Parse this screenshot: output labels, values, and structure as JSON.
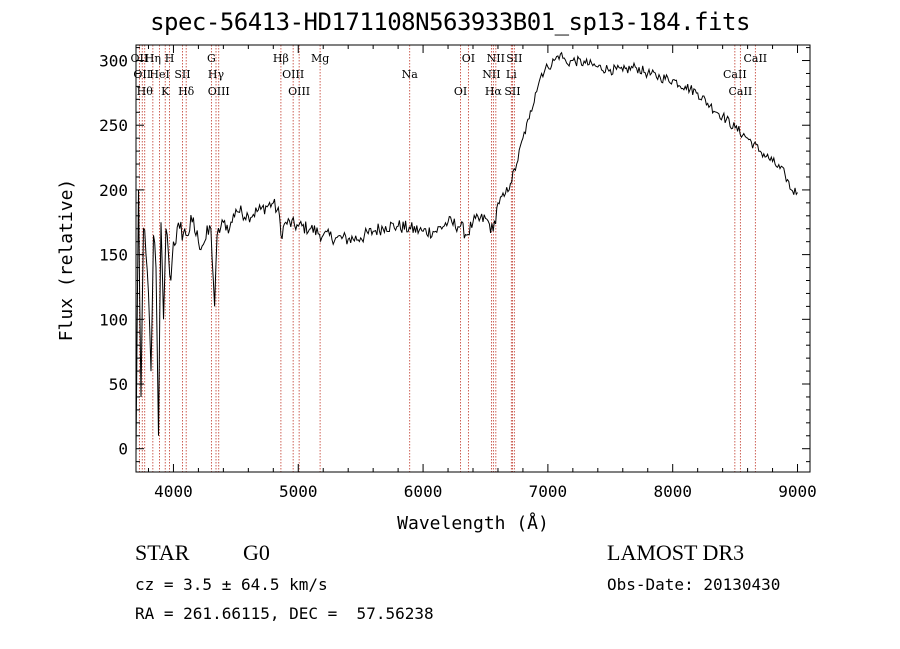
{
  "chart_data": {
    "type": "line",
    "title": "spec-56413-HD171108N563933B01_sp13-184.fits",
    "xlabel": "Wavelength (Å)",
    "ylabel": "Flux (relative)",
    "xlim": [
      3700,
      9100
    ],
    "ylim": [
      -18,
      312
    ],
    "xticks": [
      4000,
      5000,
      6000,
      7000,
      8000,
      9000
    ],
    "yticks": [
      0,
      50,
      100,
      150,
      200,
      250,
      300
    ],
    "series": [
      {
        "name": "flux",
        "x": [
          3700,
          3720,
          3740,
          3760,
          3780,
          3800,
          3820,
          3840,
          3860,
          3880,
          3900,
          3920,
          3940,
          3960,
          3980,
          4000,
          4050,
          4100,
          4150,
          4200,
          4250,
          4300,
          4330,
          4350,
          4400,
          4450,
          4500,
          4600,
          4700,
          4800,
          4850,
          4861,
          4900,
          5000,
          5100,
          5200,
          5300,
          5400,
          5500,
          5600,
          5700,
          5800,
          5900,
          6000,
          6100,
          6200,
          6300,
          6350,
          6400,
          6500,
          6562,
          6600,
          6650,
          6700,
          6750,
          6800,
          6850,
          6900,
          6950,
          7000,
          7050,
          7100,
          7150,
          7200,
          7300,
          7400,
          7500,
          7600,
          7700,
          7800,
          7900,
          8000,
          8100,
          8200,
          8300,
          8400,
          8500,
          8600,
          8700,
          8800,
          8900,
          8950,
          9000
        ],
        "y": [
          -5,
          200,
          40,
          170,
          150,
          120,
          60,
          165,
          140,
          10,
          175,
          100,
          170,
          150,
          130,
          160,
          170,
          165,
          175,
          160,
          160,
          170,
          110,
          165,
          175,
          170,
          185,
          180,
          185,
          190,
          180,
          165,
          175,
          172,
          170,
          165,
          163,
          162,
          163,
          168,
          172,
          172,
          170,
          168,
          168,
          175,
          172,
          165,
          175,
          178,
          168,
          190,
          195,
          205,
          220,
          240,
          255,
          275,
          290,
          295,
          300,
          305,
          298,
          300,
          298,
          295,
          293,
          292,
          295,
          290,
          287,
          285,
          280,
          275,
          265,
          257,
          248,
          240,
          230,
          222,
          212,
          200,
          198
        ]
      }
    ],
    "line_markers": [
      {
        "wl": 3727,
        "label": "OII"
      },
      {
        "wl": 3750,
        "label": "OII"
      },
      {
        "wl": 3770,
        "label": "Hθ"
      },
      {
        "wl": 3835,
        "label": "Hη"
      },
      {
        "wl": 3889,
        "label": "HeI"
      },
      {
        "wl": 3934,
        "label": "K"
      },
      {
        "wl": 3969,
        "label": "H"
      },
      {
        "wl": 4072,
        "label": "SII"
      },
      {
        "wl": 4102,
        "label": "Hδ"
      },
      {
        "wl": 4304,
        "label": "G"
      },
      {
        "wl": 4341,
        "label": "Hγ"
      },
      {
        "wl": 4363,
        "label": "OIII"
      },
      {
        "wl": 4861,
        "label": "Hβ"
      },
      {
        "wl": 4959,
        "label": "OIII"
      },
      {
        "wl": 5007,
        "label": "OIII"
      },
      {
        "wl": 5175,
        "label": "Mg"
      },
      {
        "wl": 5893,
        "label": "Na"
      },
      {
        "wl": 6300,
        "label": "OI"
      },
      {
        "wl": 6363,
        "label": "OI"
      },
      {
        "wl": 6548,
        "label": "NII"
      },
      {
        "wl": 6563,
        "label": "Hα"
      },
      {
        "wl": 6583,
        "label": "NII"
      },
      {
        "wl": 6707,
        "label": "Li"
      },
      {
        "wl": 6716,
        "label": "SII"
      },
      {
        "wl": 6731,
        "label": "SII"
      },
      {
        "wl": 8498,
        "label": "CaII"
      },
      {
        "wl": 8542,
        "label": "CaII"
      },
      {
        "wl": 8662,
        "label": "CaII"
      }
    ]
  },
  "info": {
    "object_type": "STAR",
    "subclass": "G0",
    "survey": "LAMOST DR3",
    "cz": "cz = 3.5 ± 64.5 km/s",
    "obs_date": "Obs-Date: 20130430",
    "coords": "RA = 261.66115, DEC =  57.56238"
  },
  "colors": {
    "marker": "#c0392b",
    "spectrum": "#000000"
  }
}
